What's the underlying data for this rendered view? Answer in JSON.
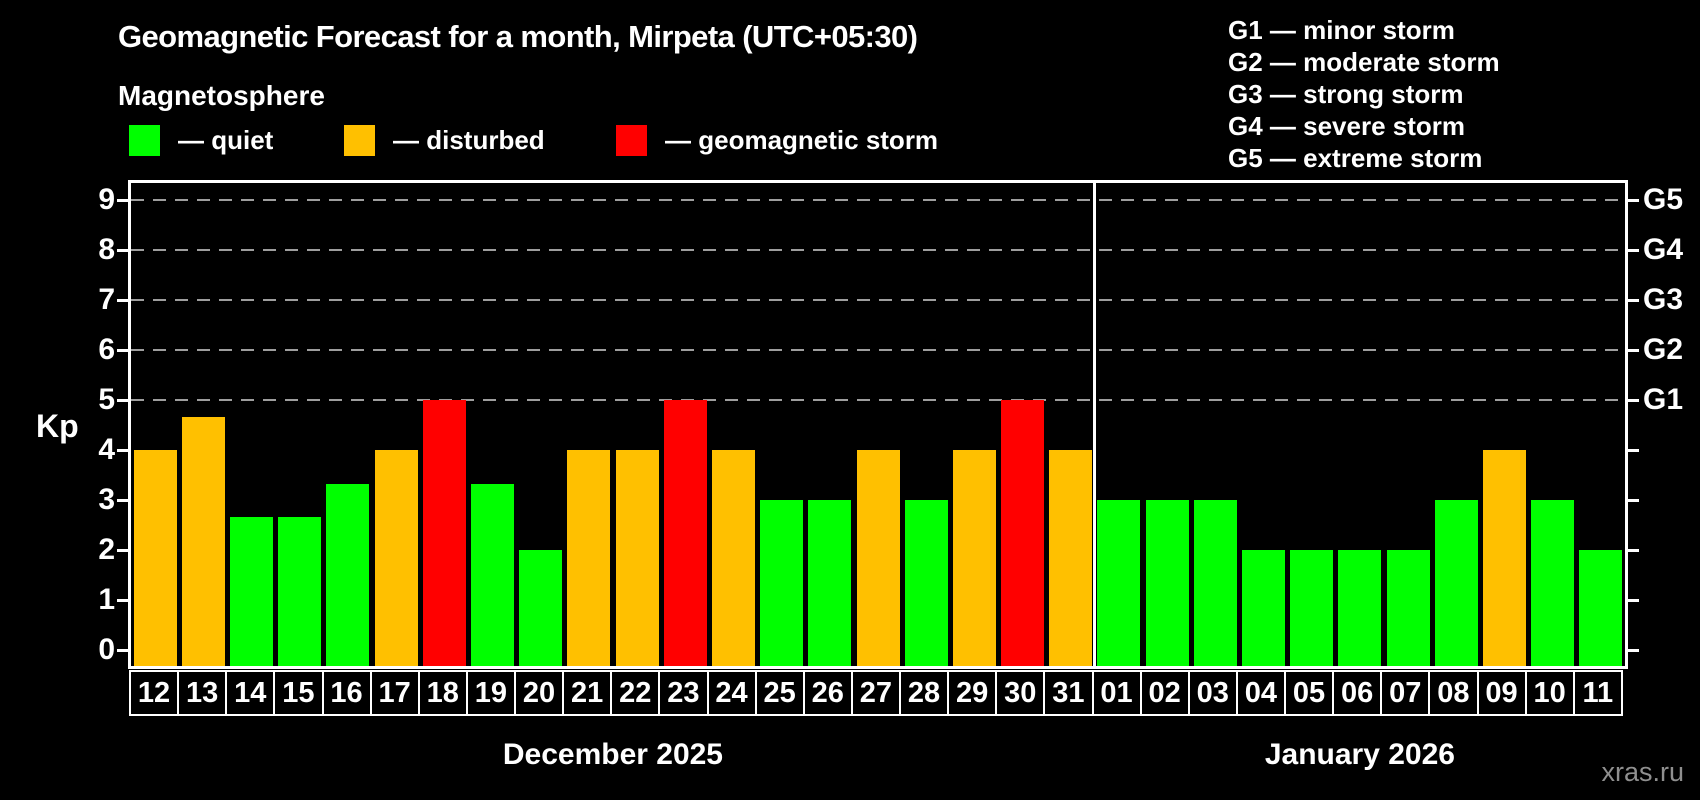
{
  "title": "Geomagnetic Forecast for a month, Mirpeta (UTC+05:30)",
  "subtitle": "Magnetosphere",
  "legend": {
    "items": [
      {
        "state": "quiet",
        "label": "— quiet",
        "color": "#00ff00"
      },
      {
        "state": "disturbed",
        "label": "— disturbed",
        "color": "#ffc000"
      },
      {
        "state": "storm",
        "label": "— geomagnetic storm",
        "color": "#ff0000"
      }
    ]
  },
  "storm_scale": [
    "G1 — minor storm",
    "G2 — moderate storm",
    "G3 — strong storm",
    "G4 — severe storm",
    "G5 — extreme storm"
  ],
  "watermark": "xras.ru",
  "chart_data": {
    "type": "bar",
    "title": "Geomagnetic Forecast for a month, Mirpeta (UTC+05:30)",
    "ylabel": "Kp",
    "ylim": [
      0,
      9.7
    ],
    "yticks": [
      0,
      1,
      2,
      3,
      4,
      5,
      6,
      7,
      8,
      9
    ],
    "gridlines": [
      5,
      6,
      7,
      8,
      9
    ],
    "grid_style": "dashed-gray-horizontal",
    "legend_position": "top-left",
    "right_axis": [
      {
        "value": 5,
        "label": "G1"
      },
      {
        "value": 6,
        "label": "G2"
      },
      {
        "value": 7,
        "label": "G3"
      },
      {
        "value": 8,
        "label": "G4"
      },
      {
        "value": 9,
        "label": "G5"
      }
    ],
    "level_colors": {
      "quiet": "#00ff00",
      "disturbed": "#ffc000",
      "storm": "#ff0000"
    },
    "months": [
      {
        "label": "December 2025",
        "days": [
          {
            "day": "12",
            "kp": 4,
            "state": "disturbed"
          },
          {
            "day": "13",
            "kp": 4.67,
            "state": "disturbed"
          },
          {
            "day": "14",
            "kp": 2.67,
            "state": "quiet"
          },
          {
            "day": "15",
            "kp": 2.67,
            "state": "quiet"
          },
          {
            "day": "16",
            "kp": 3.33,
            "state": "quiet"
          },
          {
            "day": "17",
            "kp": 4,
            "state": "disturbed"
          },
          {
            "day": "18",
            "kp": 5,
            "state": "storm"
          },
          {
            "day": "19",
            "kp": 3.33,
            "state": "quiet"
          },
          {
            "day": "20",
            "kp": 2,
            "state": "quiet"
          },
          {
            "day": "21",
            "kp": 4,
            "state": "disturbed"
          },
          {
            "day": "22",
            "kp": 4,
            "state": "disturbed"
          },
          {
            "day": "23",
            "kp": 5,
            "state": "storm"
          },
          {
            "day": "24",
            "kp": 4,
            "state": "disturbed"
          },
          {
            "day": "25",
            "kp": 3,
            "state": "quiet"
          },
          {
            "day": "26",
            "kp": 3,
            "state": "quiet"
          },
          {
            "day": "27",
            "kp": 4,
            "state": "disturbed"
          },
          {
            "day": "28",
            "kp": 3,
            "state": "quiet"
          },
          {
            "day": "29",
            "kp": 4,
            "state": "disturbed"
          },
          {
            "day": "30",
            "kp": 5,
            "state": "storm"
          },
          {
            "day": "31",
            "kp": 4,
            "state": "disturbed"
          }
        ]
      },
      {
        "label": "January 2026",
        "days": [
          {
            "day": "01",
            "kp": 3,
            "state": "quiet"
          },
          {
            "day": "02",
            "kp": 3,
            "state": "quiet"
          },
          {
            "day": "03",
            "kp": 3,
            "state": "quiet"
          },
          {
            "day": "04",
            "kp": 2,
            "state": "quiet"
          },
          {
            "day": "05",
            "kp": 2,
            "state": "quiet"
          },
          {
            "day": "06",
            "kp": 2,
            "state": "quiet"
          },
          {
            "day": "07",
            "kp": 2,
            "state": "quiet"
          },
          {
            "day": "08",
            "kp": 3,
            "state": "quiet"
          },
          {
            "day": "09",
            "kp": 4,
            "state": "disturbed"
          },
          {
            "day": "10",
            "kp": 3,
            "state": "quiet"
          },
          {
            "day": "11",
            "kp": 2,
            "state": "quiet"
          }
        ]
      }
    ]
  }
}
